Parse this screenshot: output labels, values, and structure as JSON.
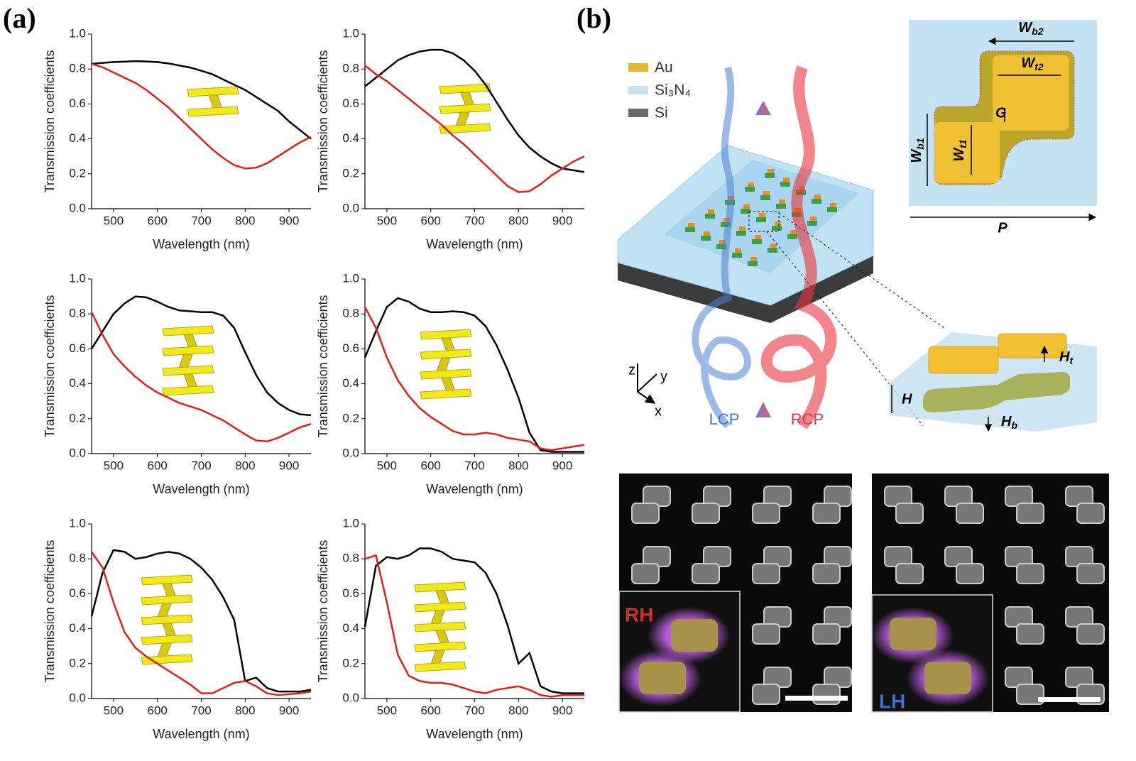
{
  "panel_labels": [
    "(a)",
    "(b)"
  ],
  "chart_data": [
    {
      "type": "line",
      "xlabel": "Wavelength (nm)",
      "ylabel": "Transmission coefficients",
      "x": [
        450,
        475,
        500,
        525,
        550,
        575,
        600,
        625,
        650,
        675,
        700,
        725,
        750,
        775,
        800,
        825,
        850,
        875,
        900,
        925,
        950
      ],
      "series": [
        {
          "color": "#000000",
          "values": [
            0.83,
            0.835,
            0.84,
            0.842,
            0.845,
            0.843,
            0.84,
            0.832,
            0.82,
            0.808,
            0.79,
            0.77,
            0.74,
            0.71,
            0.68,
            0.64,
            0.6,
            0.56,
            0.5,
            0.45,
            0.4
          ]
        },
        {
          "color": "#e0201b",
          "values": [
            0.83,
            0.81,
            0.78,
            0.75,
            0.72,
            0.68,
            0.63,
            0.58,
            0.52,
            0.46,
            0.4,
            0.34,
            0.29,
            0.25,
            0.23,
            0.235,
            0.26,
            0.3,
            0.34,
            0.38,
            0.41
          ]
        }
      ],
      "xlim": [
        450,
        950
      ],
      "ylim": [
        0,
        1
      ],
      "xticks": [
        500,
        600,
        700,
        800,
        900
      ],
      "yticks": [
        {
          "value": 0,
          "label": "0.0"
        },
        {
          "value": 0.2,
          "label": "0.2"
        },
        {
          "value": 0.4,
          "label": "0.4"
        },
        {
          "value": 0.6,
          "label": "0.6"
        },
        {
          "value": 0.8,
          "label": "0.8"
        },
        {
          "value": 1,
          "label": "1.0"
        }
      ]
    },
    {
      "type": "line",
      "xlabel": "Wavelength (nm)",
      "ylabel": "Transmission coefficients",
      "x": [
        450,
        475,
        500,
        525,
        550,
        575,
        600,
        625,
        650,
        675,
        700,
        725,
        750,
        775,
        800,
        825,
        850,
        875,
        900,
        925,
        950
      ],
      "series": [
        {
          "color": "#000000",
          "values": [
            0.7,
            0.75,
            0.8,
            0.85,
            0.88,
            0.9,
            0.91,
            0.91,
            0.89,
            0.85,
            0.79,
            0.71,
            0.61,
            0.51,
            0.42,
            0.35,
            0.3,
            0.26,
            0.23,
            0.22,
            0.21
          ]
        },
        {
          "color": "#e0201b",
          "values": [
            0.82,
            0.77,
            0.73,
            0.68,
            0.63,
            0.58,
            0.53,
            0.48,
            0.42,
            0.37,
            0.31,
            0.25,
            0.19,
            0.13,
            0.095,
            0.1,
            0.14,
            0.19,
            0.23,
            0.27,
            0.3
          ]
        }
      ],
      "xlim": [
        450,
        950
      ],
      "ylim": [
        0,
        1
      ],
      "xticks": [
        500,
        600,
        700,
        800,
        900
      ],
      "yticks": [
        {
          "value": 0,
          "label": "0.0"
        },
        {
          "value": 0.2,
          "label": "0.2"
        },
        {
          "value": 0.4,
          "label": "0.4"
        },
        {
          "value": 0.6,
          "label": "0.6"
        },
        {
          "value": 0.8,
          "label": "0.8"
        },
        {
          "value": 1,
          "label": "1.0"
        }
      ]
    },
    {
      "type": "line",
      "xlabel": "Wavelength (nm)",
      "ylabel": "Transmission coefficients",
      "x": [
        450,
        475,
        500,
        525,
        550,
        575,
        600,
        625,
        650,
        675,
        700,
        725,
        750,
        775,
        800,
        825,
        850,
        875,
        900,
        925,
        950
      ],
      "series": [
        {
          "color": "#000000",
          "values": [
            0.6,
            0.7,
            0.8,
            0.86,
            0.9,
            0.895,
            0.87,
            0.84,
            0.82,
            0.815,
            0.81,
            0.81,
            0.79,
            0.72,
            0.58,
            0.45,
            0.35,
            0.29,
            0.25,
            0.225,
            0.22
          ]
        },
        {
          "color": "#e0201b",
          "values": [
            0.81,
            0.68,
            0.57,
            0.5,
            0.44,
            0.39,
            0.35,
            0.32,
            0.29,
            0.27,
            0.25,
            0.22,
            0.19,
            0.15,
            0.11,
            0.075,
            0.07,
            0.09,
            0.12,
            0.15,
            0.17
          ]
        }
      ],
      "xlim": [
        450,
        950
      ],
      "ylim": [
        0,
        1
      ],
      "xticks": [
        500,
        600,
        700,
        800,
        900
      ],
      "yticks": [
        {
          "value": 0,
          "label": "0.0"
        },
        {
          "value": 0.2,
          "label": "0.2"
        },
        {
          "value": 0.4,
          "label": "0.4"
        },
        {
          "value": 0.6,
          "label": "0.6"
        },
        {
          "value": 0.8,
          "label": "0.8"
        },
        {
          "value": 1,
          "label": "1.0"
        }
      ]
    },
    {
      "type": "line",
      "xlabel": "Wavelength (nm)",
      "ylabel": "Transmission coefficients",
      "x": [
        450,
        475,
        500,
        525,
        550,
        575,
        600,
        625,
        650,
        675,
        700,
        725,
        750,
        775,
        800,
        825,
        850,
        875,
        900,
        925,
        950
      ],
      "series": [
        {
          "color": "#000000",
          "values": [
            0.55,
            0.7,
            0.84,
            0.89,
            0.87,
            0.83,
            0.81,
            0.81,
            0.815,
            0.81,
            0.79,
            0.73,
            0.62,
            0.48,
            0.32,
            0.12,
            0.02,
            0.01,
            0.01,
            0.01,
            0.01
          ]
        },
        {
          "color": "#e0201b",
          "values": [
            0.84,
            0.72,
            0.55,
            0.42,
            0.33,
            0.26,
            0.21,
            0.17,
            0.13,
            0.11,
            0.11,
            0.12,
            0.11,
            0.09,
            0.08,
            0.07,
            0.03,
            0.02,
            0.03,
            0.04,
            0.05
          ]
        }
      ],
      "xlim": [
        450,
        950
      ],
      "ylim": [
        0,
        1
      ],
      "xticks": [
        500,
        600,
        700,
        800,
        900
      ],
      "yticks": [
        {
          "value": 0,
          "label": "0.0"
        },
        {
          "value": 0.2,
          "label": "0.2"
        },
        {
          "value": 0.4,
          "label": "0.4"
        },
        {
          "value": 0.6,
          "label": "0.6"
        },
        {
          "value": 0.8,
          "label": "0.8"
        },
        {
          "value": 1,
          "label": "1.0"
        }
      ]
    },
    {
      "type": "line",
      "xlabel": "Wavelength (nm)",
      "ylabel": "Transmission coefficients",
      "x": [
        450,
        475,
        500,
        525,
        550,
        575,
        600,
        625,
        650,
        675,
        700,
        725,
        750,
        775,
        800,
        825,
        850,
        875,
        900,
        925,
        950
      ],
      "series": [
        {
          "color": "#000000",
          "values": [
            0.47,
            0.72,
            0.85,
            0.84,
            0.8,
            0.81,
            0.83,
            0.84,
            0.83,
            0.8,
            0.75,
            0.68,
            0.58,
            0.45,
            0.1,
            0.12,
            0.06,
            0.04,
            0.04,
            0.04,
            0.05
          ]
        },
        {
          "color": "#e0201b",
          "values": [
            0.84,
            0.75,
            0.55,
            0.38,
            0.29,
            0.24,
            0.2,
            0.16,
            0.12,
            0.08,
            0.03,
            0.03,
            0.06,
            0.09,
            0.1,
            0.07,
            0.03,
            0.02,
            0.025,
            0.03,
            0.04
          ]
        }
      ],
      "xlim": [
        450,
        950
      ],
      "ylim": [
        0,
        1
      ],
      "xticks": [
        500,
        600,
        700,
        800,
        900
      ],
      "yticks": [
        {
          "value": 0,
          "label": "0.0"
        },
        {
          "value": 0.2,
          "label": "0.2"
        },
        {
          "value": 0.4,
          "label": "0.4"
        },
        {
          "value": 0.6,
          "label": "0.6"
        },
        {
          "value": 0.8,
          "label": "0.8"
        },
        {
          "value": 1,
          "label": "1.0"
        }
      ]
    },
    {
      "type": "line",
      "xlabel": "Wavelength (nm)",
      "ylabel": "Transmission coefficients",
      "x": [
        450,
        475,
        500,
        525,
        550,
        575,
        600,
        625,
        650,
        675,
        700,
        725,
        750,
        775,
        800,
        825,
        850,
        875,
        900,
        925,
        950
      ],
      "series": [
        {
          "color": "#000000",
          "values": [
            0.41,
            0.76,
            0.81,
            0.8,
            0.82,
            0.86,
            0.86,
            0.84,
            0.8,
            0.79,
            0.78,
            0.72,
            0.6,
            0.42,
            0.2,
            0.26,
            0.07,
            0.04,
            0.03,
            0.03,
            0.03
          ]
        },
        {
          "color": "#e0201b",
          "values": [
            0.8,
            0.82,
            0.55,
            0.25,
            0.13,
            0.1,
            0.09,
            0.09,
            0.08,
            0.06,
            0.04,
            0.03,
            0.05,
            0.06,
            0.07,
            0.05,
            0.02,
            0.01,
            0.02,
            0.02,
            0.02
          ]
        }
      ],
      "xlim": [
        450,
        950
      ],
      "ylim": [
        0,
        1
      ],
      "xticks": [
        500,
        600,
        700,
        800,
        900
      ],
      "yticks": [
        {
          "value": 0,
          "label": "0.0"
        },
        {
          "value": 0.2,
          "label": "0.2"
        },
        {
          "value": 0.4,
          "label": "0.4"
        },
        {
          "value": 0.6,
          "label": "0.6"
        },
        {
          "value": 0.8,
          "label": "0.8"
        },
        {
          "value": 1,
          "label": "1.0"
        }
      ]
    }
  ],
  "diagram": {
    "legend": [
      "Au",
      "Si₃N₄",
      "Si"
    ],
    "axes": [
      "z",
      "y",
      "x"
    ],
    "beams": [
      "LCP",
      "RCP"
    ],
    "dimensions": {
      "wb2": {
        "main": "W",
        "sub": "b2"
      },
      "wt2": {
        "main": "W",
        "sub": "t2"
      },
      "g": "G",
      "wb1": {
        "main": "W",
        "sub": "b1"
      },
      "wt1": {
        "main": "W",
        "sub": "t1"
      },
      "p": "P",
      "ht": {
        "main": "H",
        "sub": "t"
      },
      "h": "H",
      "hb": {
        "main": "H",
        "sub": "b"
      }
    },
    "sem_labels": [
      "RH",
      "LH"
    ]
  }
}
